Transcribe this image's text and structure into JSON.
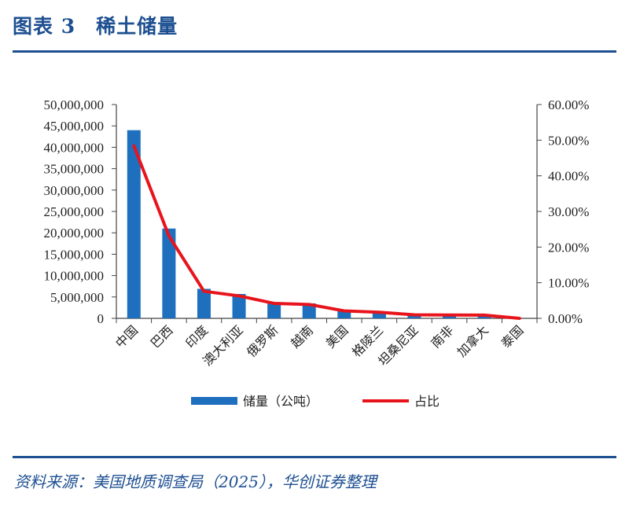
{
  "figure": {
    "title": "图表 3　稀土储量",
    "source": "资料来源：美国地质调查局（2025），华创证券整理"
  },
  "colors": {
    "accent": "#1d4f91",
    "bar": "#1f6fbf",
    "line": "#e8141c"
  },
  "chart_data": {
    "type": "bar",
    "categories": [
      "中国",
      "巴西",
      "印度",
      "澳大利亚",
      "俄罗斯",
      "越南",
      "美国",
      "格陵兰",
      "坦桑尼亚",
      "南非",
      "加拿大",
      "泰国"
    ],
    "series": [
      {
        "name": "储量（公吨）",
        "type": "bar",
        "axis": "left",
        "values": [
          44000000,
          21000000,
          6900000,
          5700000,
          3800000,
          3500000,
          1900000,
          1500000,
          890000,
          860000,
          830000,
          4500
        ]
      },
      {
        "name": "占比",
        "type": "line",
        "axis": "right",
        "values": [
          48.4,
          23.1,
          7.6,
          6.3,
          4.2,
          3.9,
          2.1,
          1.7,
          1.0,
          0.95,
          0.9,
          0.0
        ]
      }
    ],
    "y_left": {
      "range": [
        0,
        50000000
      ],
      "ticks": [
        "0",
        "5,000,000",
        "10,000,000",
        "15,000,000",
        "20,000,000",
        "25,000,000",
        "30,000,000",
        "35,000,000",
        "40,000,000",
        "45,000,000",
        "50,000,000"
      ]
    },
    "y_right": {
      "range": [
        0,
        60
      ],
      "ticks": [
        "0.00%",
        "10.00%",
        "20.00%",
        "30.00%",
        "40.00%",
        "50.00%",
        "60.00%"
      ]
    },
    "legend": [
      "储量（公吨）",
      "占比"
    ],
    "legend_position": "bottom",
    "grid": false
  }
}
